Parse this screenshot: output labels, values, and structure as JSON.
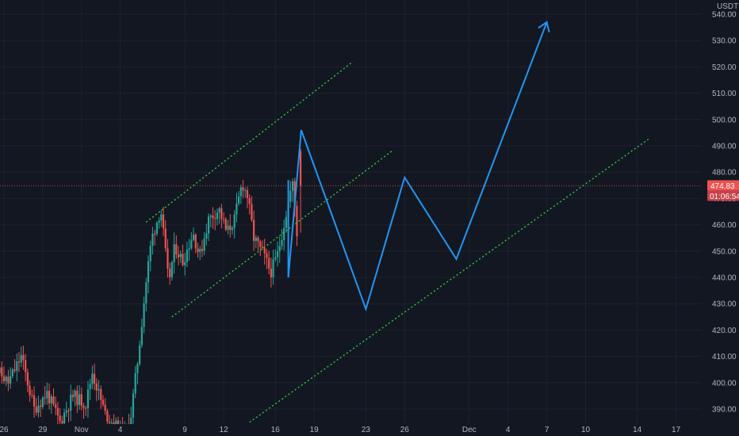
{
  "chart_data": {
    "type": "candlestick",
    "currency": "USDT",
    "y_range": [
      385,
      545
    ],
    "y_ticks": [
      390,
      400,
      410,
      420,
      430,
      440,
      450,
      460,
      470,
      480,
      490,
      500,
      510,
      520,
      530,
      540
    ],
    "y_tick_labels": [
      "390.00",
      "400.00",
      "410.00",
      "420.00",
      "430.00",
      "440.00",
      "450.00",
      "460.00",
      "470.00",
      "480.00",
      "490.00",
      "500.00",
      "510.00",
      "520.00",
      "530.00",
      "540.00"
    ],
    "x_tick_labels": [
      "26",
      "29",
      "Nov",
      "4",
      "9",
      "12",
      "16",
      "19",
      "23",
      "26",
      "Dec",
      "4",
      "7",
      "10",
      "14",
      "17"
    ],
    "last_price": {
      "value": 474.83,
      "label": "474.83",
      "countdown": "01:06:54"
    },
    "colors": {
      "up": "#26a69a",
      "down": "#ef5350",
      "projection": "#2196f3",
      "channel": "#2ecc40",
      "background": "#131722",
      "grid": "#1e222d"
    },
    "channel_lines": [
      {
        "from": [
          "Nov 6",
          461
        ],
        "to": [
          "Nov 22",
          522
        ]
      },
      {
        "from": [
          "Nov 8",
          425
        ],
        "to": [
          "Nov 25",
          488
        ]
      },
      {
        "from": [
          "Nov 14",
          385
        ],
        "to": [
          "Dec 15",
          493
        ]
      }
    ],
    "projection_path": [
      [
        "Nov 17",
        477
      ],
      [
        "Nov 17",
        440
      ],
      [
        "Nov 18",
        496
      ],
      [
        "Nov 23",
        428
      ],
      [
        "Nov 26",
        478
      ],
      [
        "Nov 30",
        447
      ],
      [
        "Dec 7",
        537
      ]
    ]
  }
}
